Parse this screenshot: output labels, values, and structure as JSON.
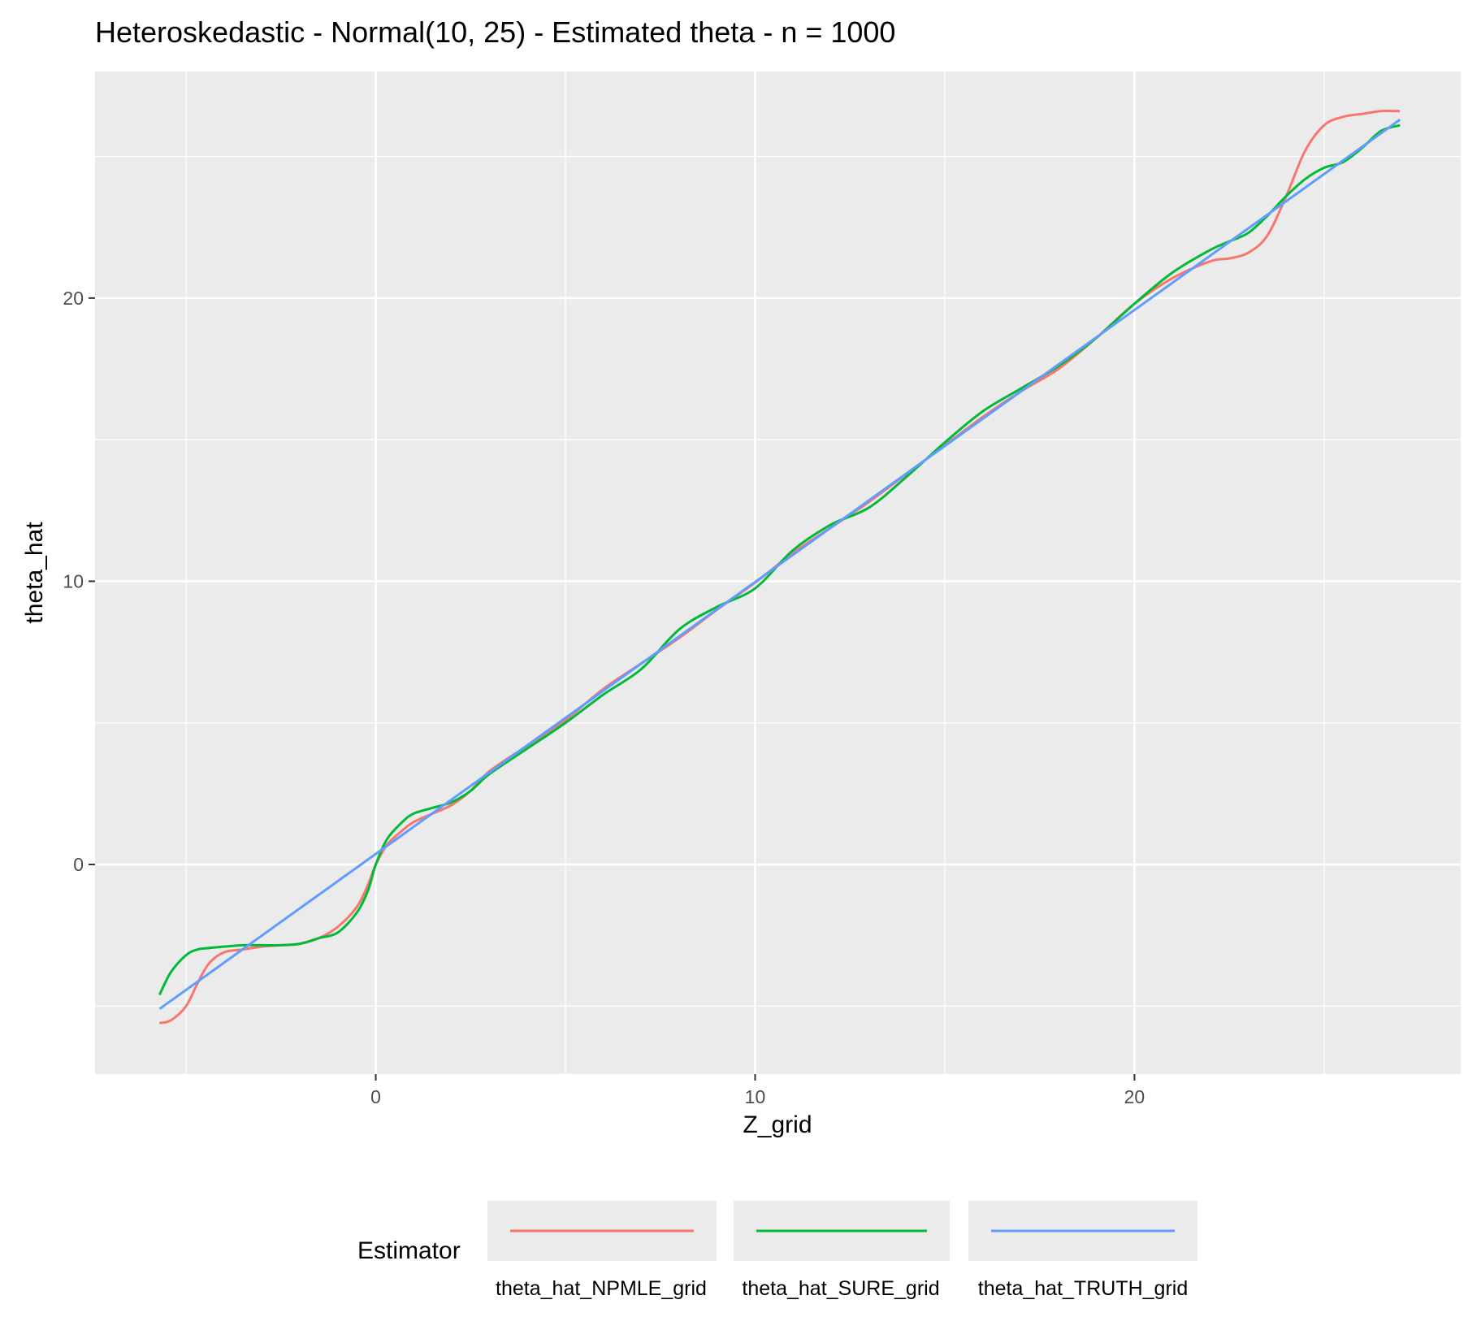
{
  "chart_data": {
    "type": "line",
    "title": "Heteroskedastic - Normal(10, 25) - Estimated theta - n = 1000",
    "xlabel": "Z_grid",
    "ylabel": "theta_hat",
    "xlim": [
      -7.4,
      28.6
    ],
    "ylim": [
      -7.4,
      28.0
    ],
    "x_ticks": [
      0,
      10,
      20
    ],
    "x_tick_labels": [
      "0",
      "10",
      "20"
    ],
    "x_minor_ticks": [
      -5,
      5,
      15,
      25
    ],
    "y_ticks": [
      0,
      10,
      20
    ],
    "y_tick_labels": [
      "0",
      "10",
      "20"
    ],
    "y_minor_ticks": [
      -5,
      5,
      15,
      25
    ],
    "grid": true,
    "legend": {
      "title": "Estimator",
      "position": "bottom"
    },
    "series": [
      {
        "name": "theta_hat_NPMLE_grid",
        "color": "#F8766D",
        "x": [
          -5.7,
          -5.4,
          -5.0,
          -4.7,
          -4.4,
          -4.0,
          -3.5,
          -3.0,
          -2.5,
          -2.0,
          -1.5,
          -1.0,
          -0.5,
          -0.2,
          0.0,
          0.3,
          0.7,
          1.0,
          1.5,
          2.0,
          2.5,
          3.0,
          4.0,
          5.0,
          6.0,
          7.0,
          8.0,
          9.0,
          10.0,
          11.0,
          12.0,
          13.0,
          14.0,
          15.0,
          16.0,
          17.0,
          18.0,
          19.0,
          20.0,
          21.0,
          22.0,
          22.5,
          23.0,
          23.5,
          24.0,
          24.5,
          25.0,
          25.5,
          26.0,
          26.5,
          27.0
        ],
        "y": [
          -5.6,
          -5.5,
          -5.0,
          -4.2,
          -3.5,
          -3.1,
          -3.0,
          -2.9,
          -2.85,
          -2.8,
          -2.6,
          -2.2,
          -1.5,
          -0.7,
          0.0,
          0.7,
          1.2,
          1.5,
          1.8,
          2.1,
          2.6,
          3.3,
          4.2,
          5.1,
          6.2,
          7.1,
          8.0,
          9.0,
          9.95,
          11.0,
          11.9,
          12.8,
          13.8,
          14.8,
          15.8,
          16.7,
          17.5,
          18.6,
          19.8,
          20.7,
          21.3,
          21.4,
          21.6,
          22.2,
          23.6,
          25.2,
          26.1,
          26.4,
          26.5,
          26.6,
          26.6
        ]
      },
      {
        "name": "theta_hat_SURE_grid",
        "color": "#00BA38",
        "x": [
          -5.7,
          -5.4,
          -5.0,
          -4.7,
          -4.4,
          -4.0,
          -3.5,
          -3.0,
          -2.5,
          -2.0,
          -1.5,
          -1.0,
          -0.5,
          -0.2,
          0.0,
          0.3,
          0.7,
          1.0,
          1.5,
          2.0,
          2.5,
          3.0,
          4.0,
          5.0,
          6.0,
          7.0,
          8.0,
          9.0,
          10.0,
          11.0,
          12.0,
          13.0,
          14.0,
          15.0,
          16.0,
          17.0,
          18.0,
          19.0,
          20.0,
          21.0,
          22.0,
          22.5,
          23.0,
          23.5,
          24.0,
          24.5,
          25.0,
          25.5,
          26.0,
          26.5,
          27.0
        ],
        "y": [
          -4.6,
          -3.8,
          -3.2,
          -3.0,
          -2.95,
          -2.9,
          -2.85,
          -2.85,
          -2.85,
          -2.8,
          -2.6,
          -2.4,
          -1.7,
          -0.9,
          0.0,
          0.9,
          1.5,
          1.8,
          2.0,
          2.2,
          2.6,
          3.2,
          4.1,
          5.0,
          6.0,
          6.9,
          8.3,
          9.1,
          9.75,
          11.1,
          12.0,
          12.6,
          13.7,
          14.9,
          16.0,
          16.8,
          17.6,
          18.6,
          19.8,
          20.9,
          21.7,
          22.0,
          22.3,
          22.9,
          23.6,
          24.2,
          24.6,
          24.8,
          25.3,
          25.9,
          26.1
        ]
      },
      {
        "name": "theta_hat_TRUTH_grid",
        "color": "#619CFF",
        "x": [
          -5.7,
          27.0
        ],
        "y": [
          -5.1,
          26.3
        ]
      }
    ]
  }
}
